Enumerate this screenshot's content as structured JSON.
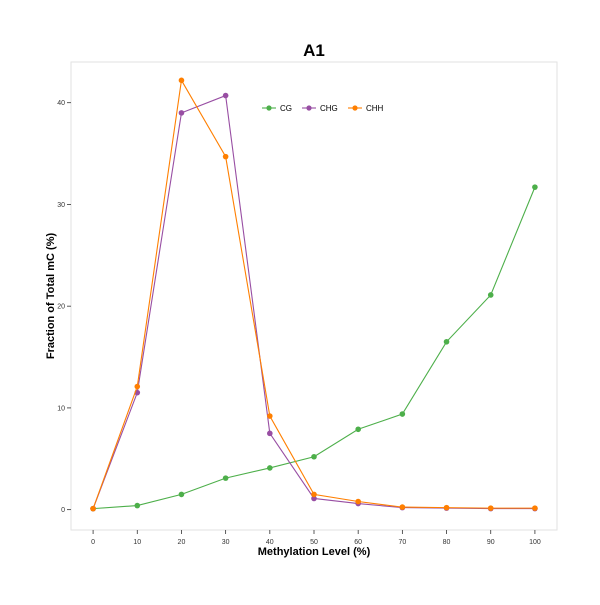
{
  "chart_data": {
    "type": "line",
    "title": "A1",
    "xlabel": "Methylation Level (%)",
    "ylabel": "Fraction of Total mC (%)",
    "x": [
      0,
      10,
      20,
      30,
      40,
      50,
      60,
      70,
      80,
      90,
      100
    ],
    "xticks": [
      0,
      10,
      20,
      30,
      40,
      50,
      60,
      70,
      80,
      90,
      100
    ],
    "yticks": [
      0,
      10,
      20,
      30,
      40
    ],
    "xlim": [
      -5,
      105
    ],
    "ylim": [
      -2,
      44
    ],
    "grid": false,
    "legend_placement": "top",
    "series": [
      {
        "name": "CG",
        "color": "#4daf4a",
        "values": [
          0.1,
          0.4,
          1.5,
          3.1,
          4.1,
          5.2,
          7.9,
          9.4,
          16.5,
          21.1,
          31.7
        ]
      },
      {
        "name": "CHG",
        "color": "#984ea3",
        "values": [
          0.1,
          11.5,
          39.0,
          40.7,
          7.5,
          1.1,
          0.6,
          0.2,
          0.15,
          0.1,
          0.1
        ]
      },
      {
        "name": "CHH",
        "color": "#ff7f00",
        "values": [
          0.1,
          12.1,
          42.2,
          34.7,
          9.2,
          1.5,
          0.8,
          0.25,
          0.2,
          0.15,
          0.15
        ]
      }
    ]
  }
}
